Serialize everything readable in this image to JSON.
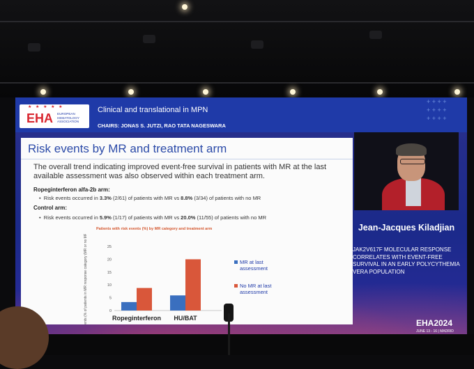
{
  "session": {
    "logo_text": "EHA",
    "logo_sub": "EUROPEAN HEMATOLOGY ASSOCIATION",
    "title": "Clinical and translational in MPN",
    "chairs": "CHAIRS: JONAS S. JUTZI, RAO TATA NAGESWARA"
  },
  "slide": {
    "title": "Risk events by MR and treatment arm",
    "intro": "The overall trend indicating improved event-free survival in patients with MR at the last available assessment was also observed within each treatment arm.",
    "arms": [
      {
        "label": "Ropeginterferon alfa-2b arm:",
        "bullet_pre": "Risk events occurred in ",
        "mr_pct": "3.3%",
        "mr_frac": " (2/61) of patients with MR vs ",
        "nomr_pct": "8.8%",
        "nomr_frac": " (3/34) of patients with no MR"
      },
      {
        "label": "Control arm:",
        "bullet_pre": "Risk events occurred in ",
        "mr_pct": "5.9%",
        "mr_frac": " (1/17) of patients with MR vs ",
        "nomr_pct": "20.0%",
        "nomr_frac": " (11/55) of patients with no MR"
      }
    ]
  },
  "chart_data": {
    "type": "bar",
    "title": "Patients with risk events (%) by MR category and treatment arm",
    "ylabel": "Patients with risk events (% of patients in MR response category (MR or no MR at last assessment)",
    "categories": [
      "Ropeginterferon",
      "HU/BAT"
    ],
    "series": [
      {
        "name": "MR at last assessment",
        "values": [
          3.3,
          5.9
        ],
        "color": "#3a6fbf"
      },
      {
        "name": "No MR at last assessment",
        "values": [
          8.8,
          20.0
        ],
        "color": "#d9573a"
      }
    ],
    "ylim": [
      0,
      25
    ],
    "yticks": [
      0,
      5,
      10,
      15,
      20,
      25
    ],
    "legend": "right"
  },
  "speaker": {
    "name": "Jean-Jacques Kiladjian",
    "talk": "JAK2V617F MOLECULAR RESPONSE CORRELATES WITH EVENT-FREE SURVIVAL IN AN EARLY POLYCYTHEMIA VERA POPULATION"
  },
  "conference": {
    "name": "EHA2024",
    "dates": "JUNE 13 - 16 | MADRID"
  }
}
